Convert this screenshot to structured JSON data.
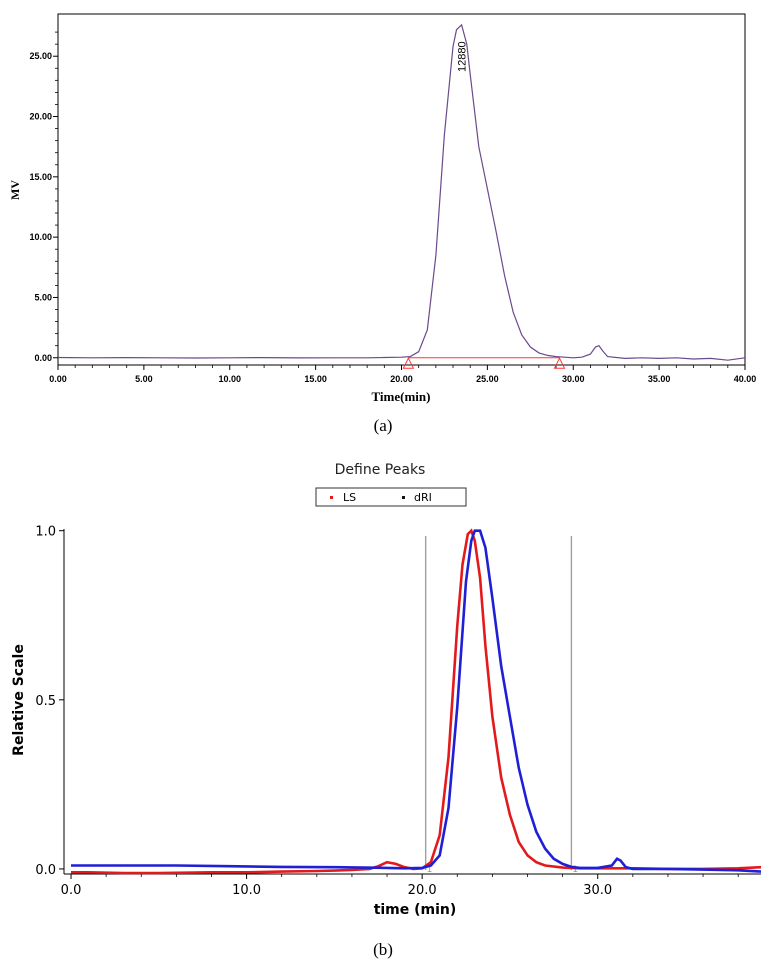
{
  "chart_data": [
    {
      "type": "line",
      "panel_label": "(a)",
      "xlabel": "Time(min)",
      "ylabel": "MV",
      "xlim": [
        0,
        40
      ],
      "ylim": [
        -0.6,
        28.5
      ],
      "x_ticks": [
        "0.00",
        "5.00",
        "10.00",
        "15.00",
        "20.00",
        "25.00",
        "30.00",
        "35.00",
        "40.00"
      ],
      "x_tick_values": [
        0,
        5,
        10,
        15,
        20,
        25,
        30,
        35,
        40
      ],
      "y_ticks": [
        "0.00",
        "5.00",
        "10.00",
        "15.00",
        "20.00",
        "25.00"
      ],
      "y_tick_values": [
        0,
        5,
        10,
        15,
        20,
        25
      ],
      "peak_label": "12880",
      "peak_label_x": 23.5,
      "markers": [
        {
          "x": 20.4,
          "y": -0.45
        },
        {
          "x": 29.2,
          "y": -0.45
        }
      ],
      "baseline": {
        "x": [
          20.4,
          29.2
        ],
        "y": [
          0,
          0
        ]
      },
      "colors": {
        "trace": "#6a4a8c",
        "baseline": "#ff3333",
        "axis": "#000000"
      },
      "series": [
        {
          "x": [
            0,
            2,
            4,
            6,
            8,
            10,
            12,
            14,
            16,
            18,
            19,
            20,
            20.5,
            21,
            21.5,
            22,
            22.5,
            23,
            23.2,
            23.5,
            23.8,
            24,
            24.5,
            25,
            25.5,
            26,
            26.5,
            27,
            27.5,
            28,
            28.5,
            29,
            29.5,
            30,
            30.5,
            31,
            31.3,
            31.5,
            31.7,
            32,
            33,
            34,
            35,
            36,
            37,
            38,
            39,
            40
          ],
          "y": [
            0.02,
            0.0,
            0.01,
            0.0,
            -0.02,
            0.0,
            0.01,
            -0.01,
            0.0,
            0.0,
            0.02,
            0.05,
            0.1,
            0.5,
            2.3,
            8.5,
            18.5,
            25.8,
            27.2,
            27.6,
            26.0,
            23.5,
            17.5,
            14.0,
            10.5,
            6.8,
            3.8,
            1.9,
            0.9,
            0.4,
            0.2,
            0.1,
            0.05,
            0.0,
            0.05,
            0.3,
            0.9,
            1.0,
            0.6,
            0.1,
            -0.05,
            0.0,
            -0.05,
            0.0,
            -0.1,
            -0.05,
            -0.2,
            0.0
          ]
        }
      ]
    },
    {
      "type": "line",
      "panel_label": "(b)",
      "title": "Define Peaks",
      "xlabel": "time (min)",
      "ylabel": "Relative Scale",
      "xlim": [
        -0.4,
        39.3
      ],
      "ylim": [
        -0.015,
        1.005
      ],
      "x_ticks": [
        "0.0",
        "10.0",
        "20.0",
        "30.0"
      ],
      "x_tick_values": [
        0,
        10,
        20,
        30
      ],
      "y_ticks": [
        "0.0",
        "0.5",
        "1.0"
      ],
      "y_tick_values": [
        0,
        0.5,
        1.0
      ],
      "legend": [
        "LS",
        "dRI"
      ],
      "legend_placement": "top-center",
      "peak_bounds": [
        20.2,
        28.5
      ],
      "bound_marker_label": "1",
      "colors": {
        "LS": "#e31a1c",
        "dRI": "#1f1fd6",
        "bound": "#a0a0a0"
      },
      "series": [
        {
          "name": "LS",
          "x": [
            0,
            1,
            3,
            5,
            8,
            10,
            12,
            14,
            15,
            16,
            17,
            17.5,
            18,
            18.5,
            19,
            19.5,
            20,
            20.5,
            21,
            21.5,
            22,
            22.3,
            22.6,
            22.8,
            23,
            23.3,
            23.6,
            24,
            24.5,
            25,
            25.5,
            26,
            26.5,
            27,
            28,
            29,
            30,
            31,
            32,
            34,
            36,
            38,
            39.3
          ],
          "y": [
            -0.01,
            -0.01,
            -0.012,
            -0.012,
            -0.01,
            -0.01,
            -0.008,
            -0.006,
            -0.005,
            -0.003,
            0.0,
            0.008,
            0.02,
            0.015,
            0.005,
            0.0,
            0.002,
            0.02,
            0.1,
            0.33,
            0.72,
            0.9,
            0.99,
            1.0,
            0.97,
            0.86,
            0.66,
            0.45,
            0.27,
            0.16,
            0.08,
            0.04,
            0.02,
            0.01,
            0.004,
            0.002,
            0.002,
            0.002,
            0.002,
            0.0,
            0.0,
            0.002,
            0.005
          ]
        },
        {
          "name": "dRI",
          "x": [
            0,
            3,
            6,
            9,
            12,
            15,
            18,
            19,
            20,
            20.5,
            21,
            21.5,
            22,
            22.5,
            22.8,
            23,
            23.3,
            23.6,
            24,
            24.5,
            25,
            25.5,
            26,
            26.5,
            27,
            27.5,
            28,
            28.5,
            29,
            30,
            30.8,
            31.1,
            31.3,
            31.6,
            32,
            34,
            36,
            38,
            39.3
          ],
          "y": [
            0.01,
            0.01,
            0.01,
            0.008,
            0.006,
            0.005,
            0.003,
            0.002,
            0.003,
            0.01,
            0.04,
            0.18,
            0.48,
            0.85,
            0.97,
            1.0,
            1.0,
            0.95,
            0.8,
            0.6,
            0.45,
            0.3,
            0.19,
            0.11,
            0.06,
            0.03,
            0.015,
            0.006,
            0.003,
            0.003,
            0.01,
            0.03,
            0.025,
            0.005,
            0.0,
            0.0,
            -0.002,
            -0.004,
            -0.008
          ]
        }
      ]
    }
  ]
}
